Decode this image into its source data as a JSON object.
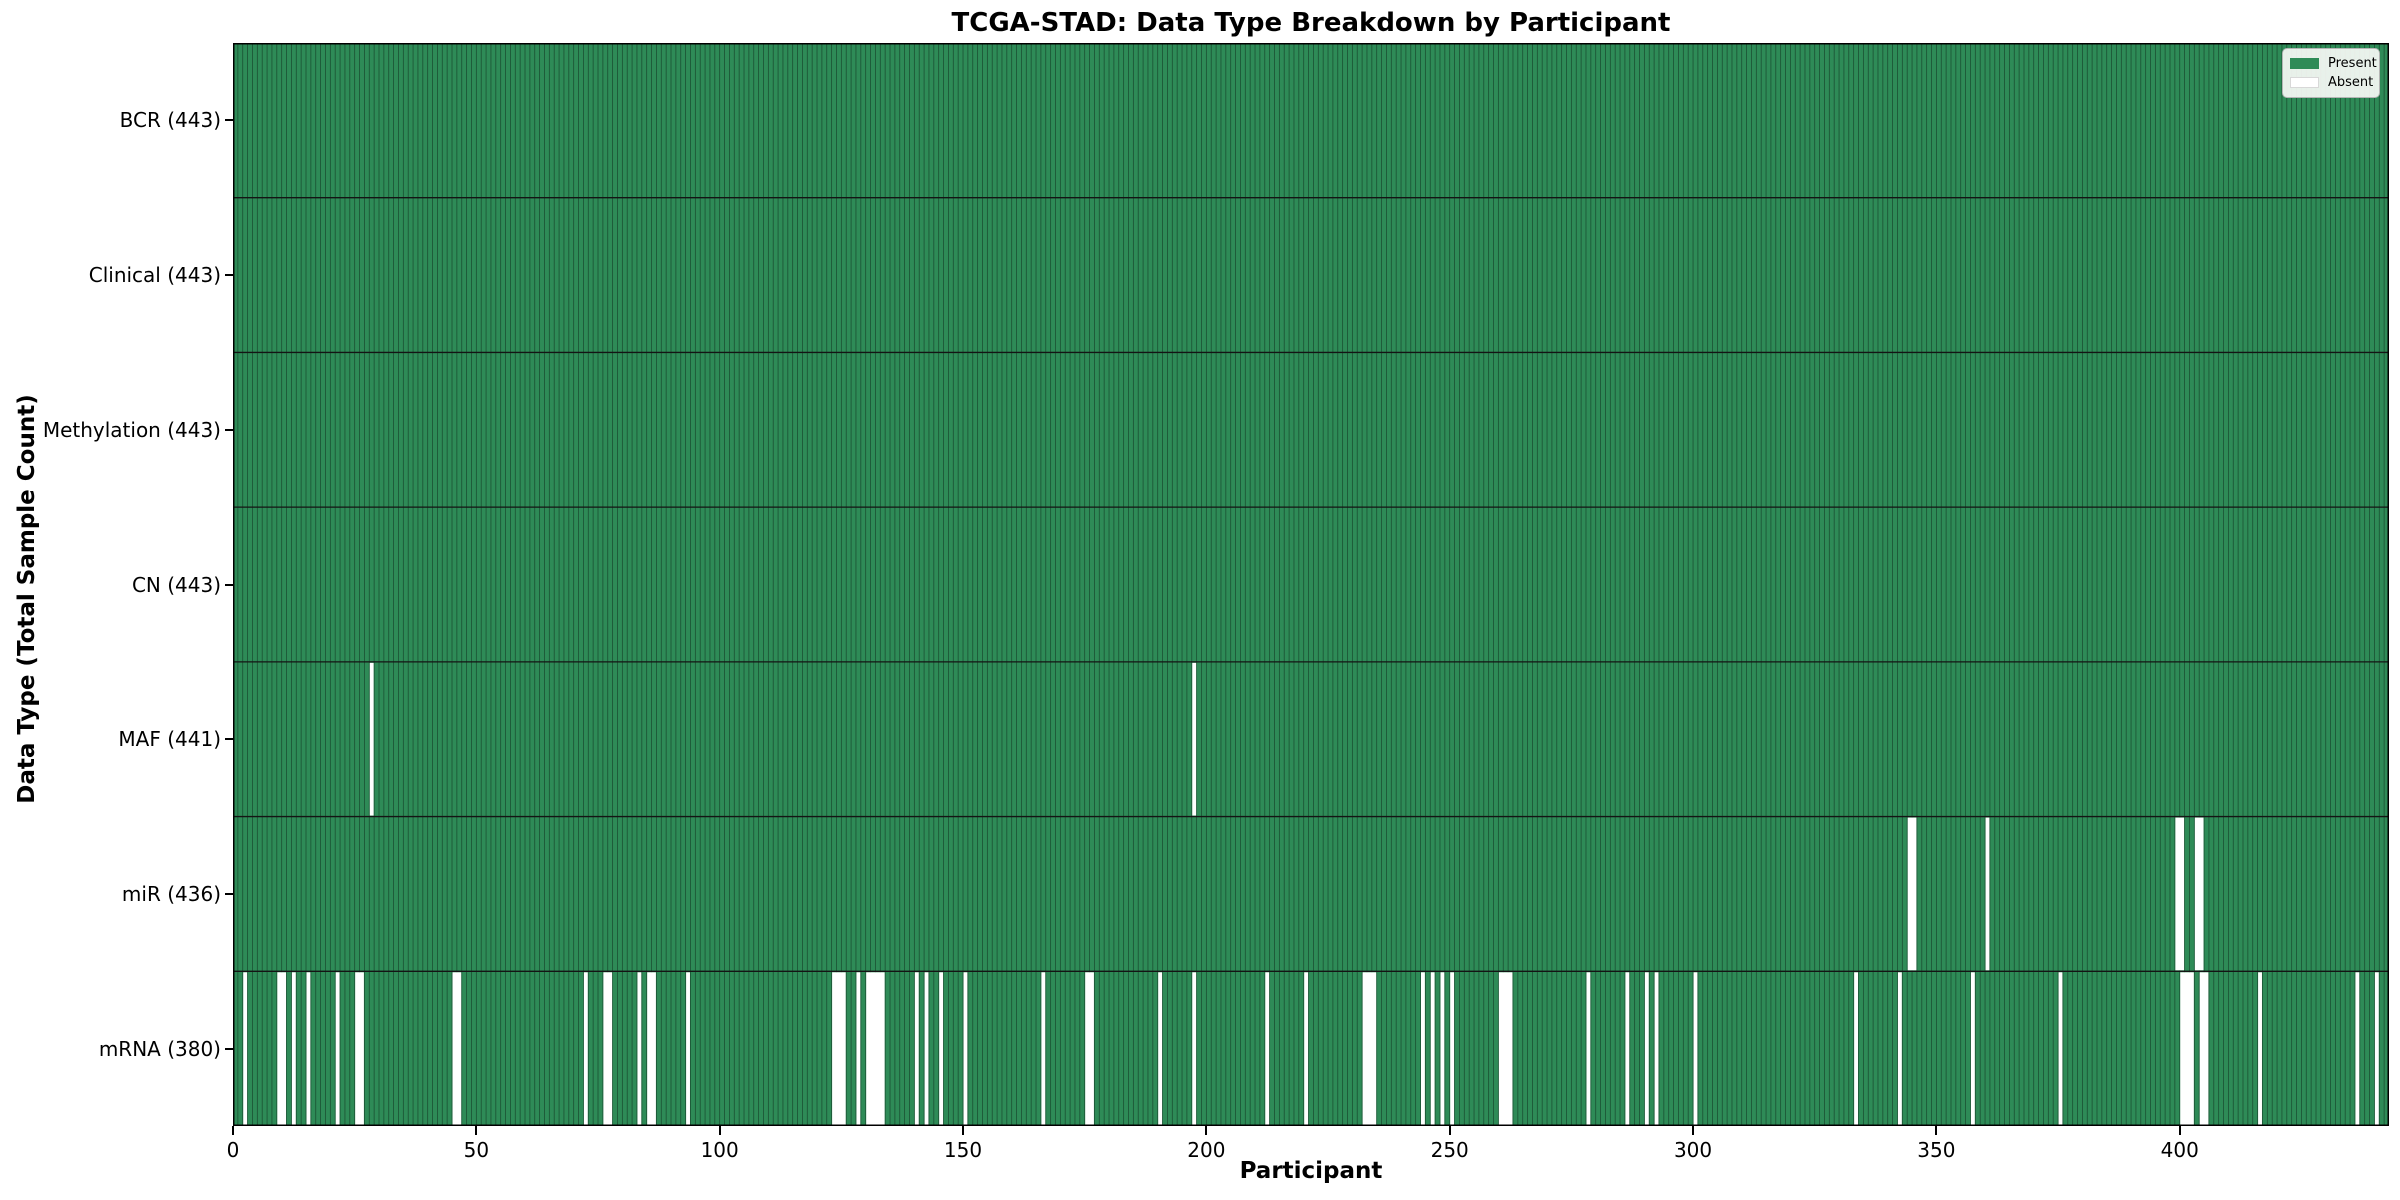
{
  "colors": {
    "present": "#2e8b57",
    "absent": "#ffffff",
    "bar_edge": "rgba(0,0,0,0.42)",
    "row_separator": "#141414",
    "frame": "#000000",
    "legend_bg": "#f8faf6",
    "legend_border": "#b5b5b5",
    "text": "#000000"
  },
  "chart_data": {
    "type": "heatmap",
    "title": "TCGA-STAD: Data Type Breakdown by Participant",
    "xlabel": "Participant",
    "ylabel": "Data Type (Total Sample Count)",
    "x_range": [
      0,
      443
    ],
    "n_participants": 443,
    "x_ticks": [
      0,
      50,
      100,
      150,
      200,
      250,
      300,
      350,
      400
    ],
    "grid": false,
    "legend_position": "upper right",
    "legend_entries": [
      {
        "label": "Present",
        "color": "#2e8b57"
      },
      {
        "label": "Absent",
        "color": "#ffffff"
      }
    ],
    "value_encoding": {
      "present": 1,
      "absent": 0
    },
    "rows": [
      {
        "name": "BCR",
        "label": "BCR (443)",
        "present_count": 443,
        "absent_count": 0,
        "absent_participants": []
      },
      {
        "name": "Clinical",
        "label": "Clinical (443)",
        "present_count": 443,
        "absent_count": 0,
        "absent_participants": []
      },
      {
        "name": "Methylation",
        "label": "Methylation (443)",
        "present_count": 443,
        "absent_count": 0,
        "absent_participants": []
      },
      {
        "name": "CN",
        "label": "CN (443)",
        "present_count": 443,
        "absent_count": 0,
        "absent_participants": []
      },
      {
        "name": "MAF",
        "label": "MAF (441)",
        "present_count": 441,
        "absent_count": 2,
        "absent_participants": [
          28,
          197
        ]
      },
      {
        "name": "miR",
        "label": "miR (436)",
        "present_count": 436,
        "absent_count": 7,
        "absent_participants": [
          344,
          345,
          360,
          399,
          400,
          403,
          404
        ]
      },
      {
        "name": "mRNA",
        "label": "mRNA (380)",
        "present_count": 380,
        "absent_count": 63,
        "absent_participants": [
          2,
          9,
          10,
          12,
          15,
          21,
          25,
          26,
          45,
          46,
          72,
          76,
          77,
          83,
          85,
          86,
          93,
          123,
          124,
          125,
          128,
          130,
          131,
          132,
          133,
          140,
          142,
          145,
          150,
          166,
          175,
          176,
          190,
          197,
          212,
          220,
          232,
          233,
          234,
          244,
          246,
          248,
          250,
          260,
          261,
          262,
          278,
          286,
          290,
          292,
          300,
          333,
          342,
          357,
          375,
          400,
          401,
          402,
          404,
          405,
          416,
          436,
          440
        ]
      }
    ]
  }
}
